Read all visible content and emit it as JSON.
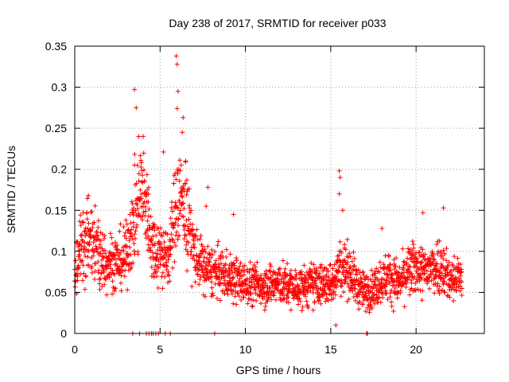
{
  "chart_data": {
    "type": "scatter",
    "title": "Day 238 of 2017, SRMTID for receiver p033",
    "xlabel": "GPS time / hours",
    "ylabel": "SRMTID / TECUs",
    "xlim": [
      0,
      24
    ],
    "ylim": [
      0,
      0.35
    ],
    "xticks": [
      0,
      5,
      10,
      15,
      20
    ],
    "xtick_labels": [
      "0",
      "5",
      "10",
      "15",
      "20"
    ],
    "yticks": [
      0,
      0.05,
      0.1,
      0.15,
      0.2,
      0.25,
      0.3,
      0.35
    ],
    "ytick_labels": [
      "0",
      "0.05",
      "0.1",
      "0.15",
      "0.2",
      "0.25",
      "0.3",
      "0.35"
    ],
    "grid": true,
    "marker": "+",
    "color": "#ff0000",
    "x_extent": [
      0,
      22.7
    ],
    "background_trend": [
      [
        0.0,
        0.075
      ],
      [
        0.5,
        0.115
      ],
      [
        1.0,
        0.11
      ],
      [
        1.5,
        0.09
      ],
      [
        2.0,
        0.09
      ],
      [
        2.5,
        0.085
      ],
      [
        3.0,
        0.095
      ],
      [
        3.5,
        0.14
      ],
      [
        4.0,
        0.18
      ],
      [
        4.5,
        0.11
      ],
      [
        5.0,
        0.1
      ],
      [
        5.5,
        0.09
      ],
      [
        6.0,
        0.17
      ],
      [
        6.5,
        0.15
      ],
      [
        7.0,
        0.1
      ],
      [
        7.5,
        0.08
      ],
      [
        8.0,
        0.075
      ],
      [
        9.0,
        0.07
      ],
      [
        10.0,
        0.06
      ],
      [
        11.0,
        0.06
      ],
      [
        12.0,
        0.06
      ],
      [
        13.0,
        0.055
      ],
      [
        14.0,
        0.06
      ],
      [
        15.0,
        0.06
      ],
      [
        15.5,
        0.08
      ],
      [
        16.0,
        0.08
      ],
      [
        16.5,
        0.06
      ],
      [
        17.0,
        0.05
      ],
      [
        17.5,
        0.055
      ],
      [
        18.0,
        0.065
      ],
      [
        18.5,
        0.07
      ],
      [
        19.0,
        0.06
      ],
      [
        19.5,
        0.075
      ],
      [
        20.0,
        0.08
      ],
      [
        20.5,
        0.075
      ],
      [
        21.0,
        0.08
      ],
      [
        21.5,
        0.085
      ],
      [
        22.0,
        0.065
      ],
      [
        22.7,
        0.07
      ]
    ],
    "peaks": [
      {
        "x": 3.5,
        "y": 0.297
      },
      {
        "x": 3.6,
        "y": 0.275
      },
      {
        "x": 3.75,
        "y": 0.24
      },
      {
        "x": 3.9,
        "y": 0.208
      },
      {
        "x": 4.3,
        "y": 0.16
      },
      {
        "x": 5.2,
        "y": 0.221
      },
      {
        "x": 5.95,
        "y": 0.338
      },
      {
        "x": 6.0,
        "y": 0.328
      },
      {
        "x": 6.05,
        "y": 0.295
      },
      {
        "x": 6.0,
        "y": 0.274
      },
      {
        "x": 6.35,
        "y": 0.263
      },
      {
        "x": 6.3,
        "y": 0.245
      },
      {
        "x": 6.5,
        "y": 0.21
      },
      {
        "x": 7.8,
        "y": 0.178
      },
      {
        "x": 7.7,
        "y": 0.155
      },
      {
        "x": 0.8,
        "y": 0.168
      },
      {
        "x": 9.3,
        "y": 0.145
      },
      {
        "x": 15.5,
        "y": 0.198
      },
      {
        "x": 15.55,
        "y": 0.19
      },
      {
        "x": 15.5,
        "y": 0.17
      },
      {
        "x": 15.7,
        "y": 0.15
      },
      {
        "x": 20.4,
        "y": 0.147
      },
      {
        "x": 21.6,
        "y": 0.153
      },
      {
        "x": 18.0,
        "y": 0.128
      },
      {
        "x": 15.3,
        "y": 0.01
      }
    ],
    "zero_points_x": [
      3.4,
      3.8,
      4.2,
      4.35,
      4.5,
      4.6,
      4.75,
      4.9,
      5.3,
      5.6,
      8.2,
      17.1,
      17.15
    ]
  }
}
